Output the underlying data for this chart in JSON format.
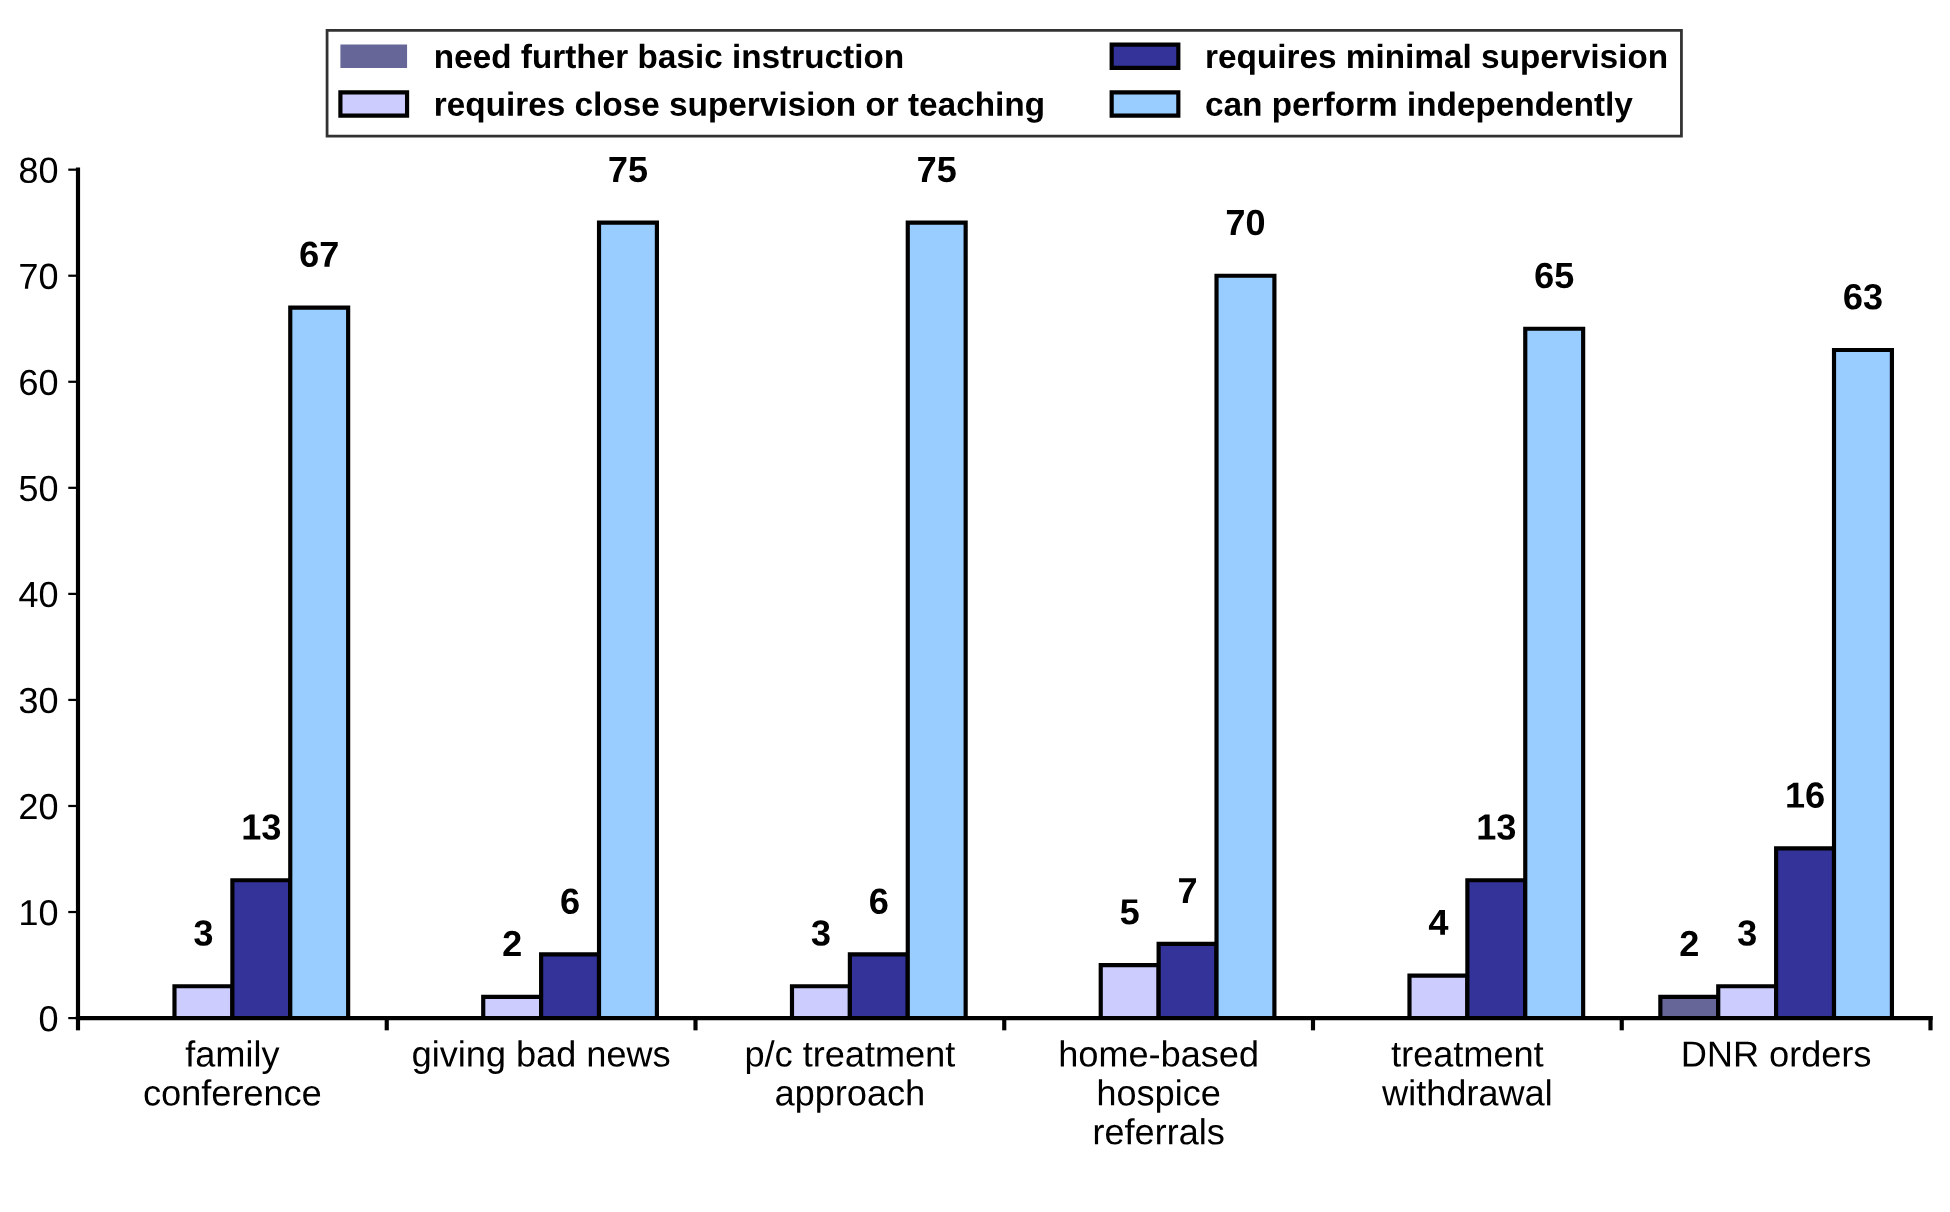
{
  "chart_data": {
    "type": "bar",
    "categories": [
      "family\nconference",
      "giving bad news",
      "p/c treatment\napproach",
      "home-based\nhospice\nreferrals",
      "treatment\nwithdrawal",
      "DNR orders"
    ],
    "series": [
      {
        "name": "need further basic instruction",
        "color": "#666699",
        "values": [
          0,
          0,
          0,
          0,
          0,
          2
        ],
        "value_labels": [
          null,
          null,
          null,
          null,
          null,
          "2"
        ]
      },
      {
        "name": "requires close supervision or teaching",
        "color": "#ccccff",
        "values": [
          3,
          2,
          3,
          5,
          4,
          3
        ],
        "value_labels": [
          "3",
          "2",
          "3",
          "5",
          "4",
          "3"
        ]
      },
      {
        "name": "requires minimal supervision",
        "color": "#333399",
        "values": [
          13,
          6,
          6,
          7,
          13,
          16
        ],
        "value_labels": [
          "13",
          "6",
          "6",
          "7",
          "13",
          "16"
        ]
      },
      {
        "name": "can perform independently",
        "color": "#99ccff",
        "values": [
          67,
          75,
          75,
          70,
          65,
          63
        ],
        "value_labels": [
          "67",
          "75",
          "75",
          "70",
          "65",
          "63"
        ]
      }
    ],
    "ylim": [
      0,
      80
    ],
    "yticks": [
      0,
      10,
      20,
      30,
      40,
      50,
      60,
      70,
      80
    ],
    "grid": false,
    "legend": "top"
  }
}
